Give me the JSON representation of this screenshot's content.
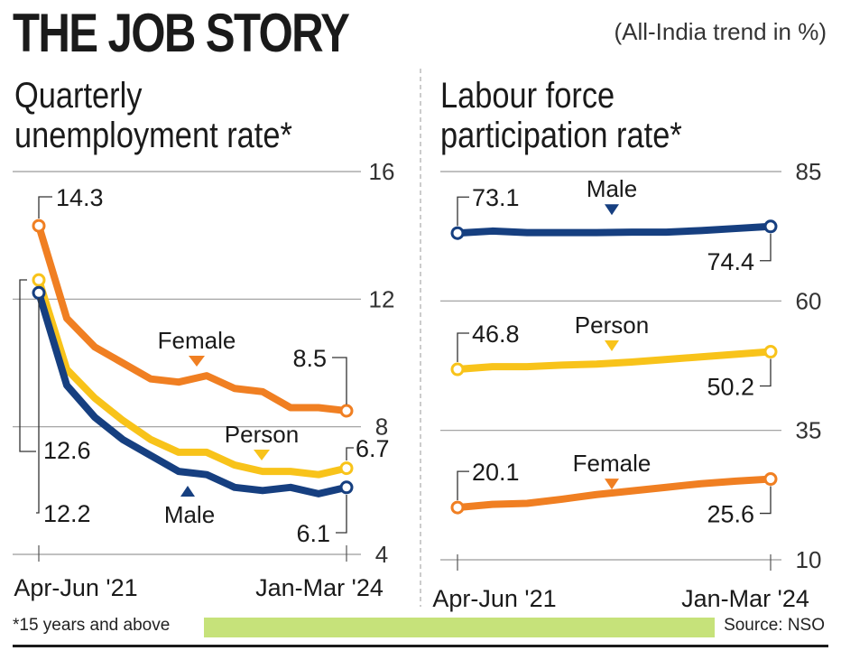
{
  "header": {
    "title": "THE JOB STORY",
    "unit_note": "(All-India trend in %)"
  },
  "footer": {
    "note": "*15 years and above",
    "source": "Source: NSO"
  },
  "colors": {
    "female": "#f07f22",
    "person": "#f8c31a",
    "male": "#163f80",
    "grid": "#9a9a9a"
  },
  "chart_data": [
    {
      "type": "line",
      "title_line1": "Quarterly",
      "title_line2": "unemployment rate*",
      "ylim": [
        4,
        16
      ],
      "yticks": [
        16,
        12,
        8,
        4
      ],
      "x_labels": [
        "Apr-Jun '21",
        "Jan-Mar '24"
      ],
      "series": [
        {
          "name": "Female",
          "key": "female",
          "values": [
            14.3,
            11.4,
            10.5,
            10.0,
            9.5,
            9.4,
            9.6,
            9.2,
            9.1,
            8.6,
            8.6,
            8.5
          ]
        },
        {
          "name": "Person",
          "key": "person",
          "values": [
            12.6,
            9.8,
            8.9,
            8.2,
            7.6,
            7.2,
            7.2,
            6.8,
            6.6,
            6.6,
            6.5,
            6.7
          ]
        },
        {
          "name": "Male",
          "key": "male",
          "values": [
            12.2,
            9.3,
            8.3,
            7.6,
            7.1,
            6.6,
            6.5,
            6.1,
            6.0,
            6.1,
            5.9,
            6.1
          ]
        }
      ],
      "start_labels": {
        "female": "14.3",
        "person": "12.6",
        "male": "12.2"
      },
      "end_labels": {
        "female": "8.5",
        "person": "6.7",
        "male": "6.1"
      },
      "series_labels": {
        "female": "Female",
        "person": "Person",
        "male": "Male"
      }
    },
    {
      "type": "line",
      "title_line1": "Labour force",
      "title_line2": "participation rate*",
      "ylim": [
        10,
        85
      ],
      "yticks": [
        85,
        60,
        35,
        10
      ],
      "x_labels": [
        "Apr-Jun '21",
        "Jan-Mar '24"
      ],
      "series": [
        {
          "name": "Male",
          "key": "male",
          "values": [
            73.1,
            73.5,
            73.2,
            73.2,
            73.2,
            73.3,
            73.3,
            73.6,
            74.0,
            74.4
          ]
        },
        {
          "name": "Person",
          "key": "person",
          "values": [
            46.8,
            47.3,
            47.3,
            47.6,
            47.8,
            48.2,
            48.7,
            49.2,
            49.7,
            50.2
          ]
        },
        {
          "name": "Female",
          "key": "female",
          "values": [
            20.1,
            20.7,
            20.9,
            21.7,
            22.6,
            23.3,
            24.0,
            24.7,
            25.2,
            25.6
          ]
        }
      ],
      "start_labels": {
        "male": "73.1",
        "person": "46.8",
        "female": "20.1"
      },
      "end_labels": {
        "male": "74.4",
        "person": "50.2",
        "female": "25.6"
      },
      "series_labels": {
        "male": "Male",
        "person": "Person",
        "female": "Female"
      }
    }
  ]
}
